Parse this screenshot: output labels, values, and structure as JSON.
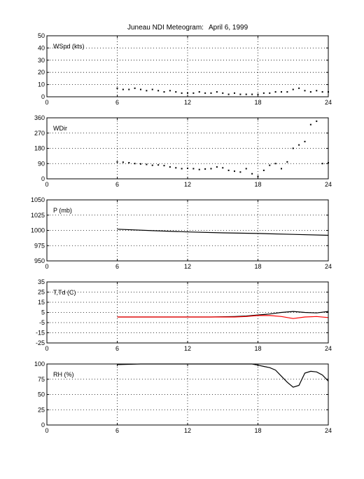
{
  "figure": {
    "title": "Juneau NDI Meteogram:",
    "date": "April  6, 1999"
  },
  "chart_data": [
    {
      "type": "scatter",
      "label": "WSpd (kts)",
      "xlim": [
        0,
        24
      ],
      "ylim": [
        0,
        50
      ],
      "xticks": [
        "0",
        "6",
        "12",
        "18",
        "24"
      ],
      "yticks": [
        "0",
        "10",
        "20",
        "30",
        "40",
        "50"
      ],
      "grid": true,
      "series": [
        {
          "color": "#000000",
          "x": [
            6.0,
            6.5,
            7.0,
            7.5,
            8.0,
            8.5,
            9.0,
            9.5,
            10.0,
            10.5,
            11.0,
            11.5,
            12.0,
            12.5,
            13.0,
            13.5,
            14.0,
            14.5,
            15.0,
            15.5,
            16.0,
            16.5,
            17.0,
            17.5,
            18.0,
            18.5,
            19.0,
            19.5,
            20.0,
            20.5,
            21.0,
            21.5,
            22.0,
            22.5,
            23.0,
            23.5,
            24.0
          ],
          "y": [
            7,
            6,
            6,
            7,
            6,
            5,
            6,
            5,
            4,
            5,
            4,
            3,
            3,
            3,
            4,
            3,
            3,
            4,
            3,
            2,
            3,
            2,
            2,
            2,
            2,
            3,
            3,
            4,
            4,
            4,
            6,
            7,
            5,
            4,
            5,
            4,
            4
          ]
        }
      ]
    },
    {
      "type": "scatter",
      "label": "WDir",
      "xlim": [
        0,
        24
      ],
      "ylim": [
        0,
        360
      ],
      "xticks": [
        "0",
        "6",
        "12",
        "18",
        "24"
      ],
      "yticks": [
        "0",
        "90",
        "180",
        "270",
        "360"
      ],
      "grid": true,
      "series": [
        {
          "color": "#000000",
          "x": [
            6.0,
            6.5,
            7.0,
            7.5,
            8.0,
            8.5,
            9.0,
            9.5,
            10.0,
            10.5,
            11.0,
            11.5,
            12.0,
            12.5,
            13.0,
            13.5,
            14.0,
            14.5,
            15.0,
            15.5,
            16.0,
            16.5,
            17.0,
            17.5,
            18.0,
            18.5,
            19.0,
            19.5,
            20.0,
            20.5,
            21.0,
            21.5,
            22.0,
            22.5,
            23.0,
            23.5,
            24.0
          ],
          "y": [
            100,
            98,
            95,
            90,
            88,
            85,
            80,
            82,
            78,
            70,
            65,
            60,
            62,
            60,
            55,
            58,
            60,
            70,
            65,
            50,
            45,
            40,
            60,
            30,
            15,
            50,
            80,
            90,
            60,
            100,
            180,
            200,
            220,
            320,
            340,
            90,
            95
          ]
        }
      ]
    },
    {
      "type": "line",
      "label": "P (mb)",
      "xlim": [
        0,
        24
      ],
      "ylim": [
        950,
        1050
      ],
      "xticks": [
        "0",
        "6",
        "12",
        "18",
        "24"
      ],
      "yticks": [
        "950",
        "975",
        "1000",
        "1025",
        "1050"
      ],
      "grid": true,
      "series": [
        {
          "color": "#000000",
          "x": [
            6,
            9,
            12,
            15,
            18,
            21,
            24
          ],
          "y": [
            1002,
            999.5,
            997.5,
            996,
            995,
            993.5,
            992
          ]
        }
      ]
    },
    {
      "type": "line",
      "label": "T,Td (C)",
      "xlim": [
        0,
        24
      ],
      "ylim": [
        -25,
        35
      ],
      "xticks": [
        "0",
        "6",
        "12",
        "18",
        "24"
      ],
      "yticks": [
        "-25",
        "-15",
        "-5",
        "5",
        "15",
        "25",
        "35"
      ],
      "grid": true,
      "series": [
        {
          "color": "#000000",
          "x": [
            6,
            8,
            10,
            12,
            14,
            16,
            17,
            18,
            19,
            20,
            21,
            22,
            23,
            24
          ],
          "y": [
            0.5,
            0.5,
            0.5,
            0.5,
            0.5,
            1,
            1.5,
            2.5,
            3.5,
            5,
            6,
            5,
            4.5,
            6
          ]
        },
        {
          "color": "#ff0000",
          "x": [
            6,
            8,
            10,
            12,
            14,
            16,
            17,
            18,
            19,
            20,
            21,
            22,
            23,
            24
          ],
          "y": [
            0.5,
            0.5,
            0.5,
            0.5,
            0.5,
            0.5,
            1,
            2,
            2,
            1,
            -1,
            0.5,
            1,
            0
          ]
        }
      ]
    },
    {
      "type": "line",
      "label": "RH (%)",
      "xlim": [
        0,
        24
      ],
      "ylim": [
        0,
        100
      ],
      "xticks": [
        "0",
        "6",
        "12",
        "18",
        "24"
      ],
      "yticks": [
        "0",
        "25",
        "50",
        "75",
        "100"
      ],
      "grid": true,
      "series": [
        {
          "color": "#000000",
          "x": [
            6,
            8,
            10,
            12,
            14,
            16,
            17,
            17.5,
            18,
            18.5,
            19,
            19.5,
            20,
            20.5,
            21,
            21.5,
            22,
            22.5,
            23,
            23.5,
            24
          ],
          "y": [
            99,
            100,
            100,
            100,
            100,
            100,
            100,
            100,
            98,
            96,
            94,
            90,
            80,
            70,
            62,
            65,
            85,
            88,
            87,
            82,
            72
          ]
        }
      ]
    }
  ]
}
